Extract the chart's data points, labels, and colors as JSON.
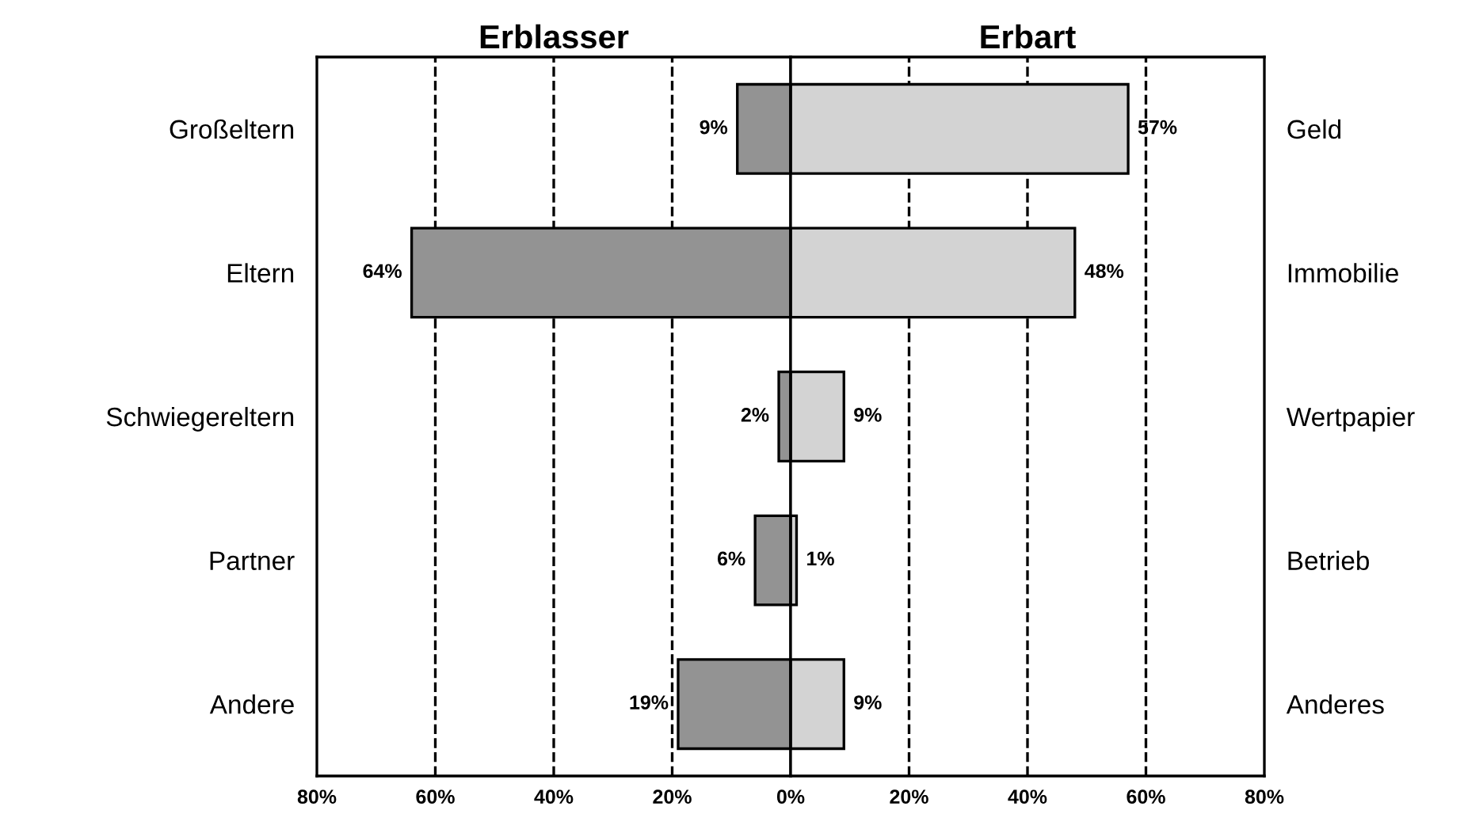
{
  "chart_data": [
    {
      "type": "bar",
      "orientation": "horizontal",
      "title": "Erblasser",
      "categories": [
        "Großeltern",
        "Eltern",
        "Schwiegereltern",
        "Partner",
        "Andere"
      ],
      "series": [
        {
          "color": "#939393",
          "values": [
            9,
            64,
            2,
            6,
            19
          ],
          "value_labels": [
            "9%",
            "64%",
            "2%",
            "6%",
            "19%"
          ]
        }
      ],
      "xlim": [
        80,
        0
      ],
      "xticks": [
        {
          "value": 80,
          "label": "80%"
        },
        {
          "value": 60,
          "label": "60%"
        },
        {
          "value": 40,
          "label": "40%"
        },
        {
          "value": 20,
          "label": "20%"
        },
        {
          "value": 0,
          "label": "0%"
        }
      ],
      "grid": "x",
      "line_style": "dashed"
    },
    {
      "type": "bar",
      "orientation": "horizontal",
      "title": "Erbart",
      "categories": [
        "Geld",
        "Immobilie",
        "Wertpapier",
        "Betrieb",
        "Anderes"
      ],
      "series": [
        {
          "color": "#d3d3d3",
          "values": [
            57,
            48,
            9,
            1,
            9
          ],
          "value_labels": [
            "57%",
            "48%",
            "9%",
            "1%",
            "9%"
          ]
        }
      ],
      "xlim": [
        0,
        80
      ],
      "xticks": [
        {
          "value": 0,
          "label": null
        },
        {
          "value": 20,
          "label": "20%"
        },
        {
          "value": 40,
          "label": "40%"
        },
        {
          "value": 60,
          "label": "60%"
        },
        {
          "value": 80,
          "label": "80%"
        }
      ],
      "grid": "x",
      "line_style": "dashed"
    }
  ]
}
